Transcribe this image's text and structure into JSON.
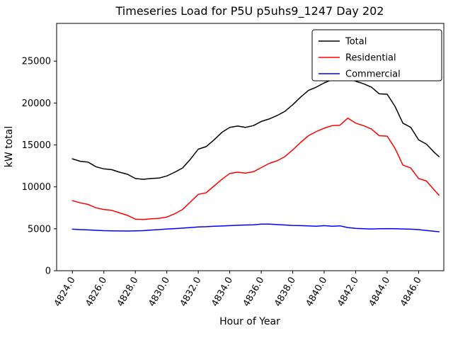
{
  "chart_data": {
    "type": "line",
    "title": "Timeseries Load for P5U p5uhs9_1247  Day 202",
    "xlabel": "Hour of Year",
    "ylabel": "kW total",
    "xlim": [
      4823.0,
      4847.6
    ],
    "ylim": [
      0,
      29500
    ],
    "grid": false,
    "legend_position": "upper right",
    "xticks": [
      4824,
      4826,
      4828,
      4830,
      4832,
      4834,
      4836,
      4838,
      4840,
      4842,
      4844,
      4846
    ],
    "xtick_labels": [
      "4824.0",
      "4826.0",
      "4828.0",
      "4830.0",
      "4832.0",
      "4834.0",
      "4836.0",
      "4838.0",
      "4840.0",
      "4842.0",
      "4844.0",
      "4846.0"
    ],
    "yticks": [
      0,
      5000,
      10000,
      15000,
      20000,
      25000
    ],
    "ytick_labels": [
      "0",
      "5000",
      "10000",
      "15000",
      "20000",
      "25000"
    ],
    "legend": [
      {
        "label": "Total",
        "color": "#000000"
      },
      {
        "label": "Residential",
        "color": "#ff0000"
      },
      {
        "label": "Commercial",
        "color": "#0000ff"
      }
    ],
    "x": [
      4824.0,
      4824.5,
      4825.0,
      4825.5,
      4826.0,
      4826.5,
      4827.0,
      4827.5,
      4828.0,
      4828.5,
      4829.0,
      4829.5,
      4830.0,
      4830.5,
      4831.0,
      4831.5,
      4832.0,
      4832.5,
      4833.0,
      4833.5,
      4834.0,
      4834.5,
      4835.0,
      4835.5,
      4836.0,
      4836.5,
      4837.0,
      4837.5,
      4838.0,
      4838.5,
      4839.0,
      4839.5,
      4840.0,
      4840.5,
      4841.0,
      4841.5,
      4842.0,
      4842.5,
      4843.0,
      4843.5,
      4844.0,
      4844.5,
      4845.0,
      4845.5,
      4846.0,
      4846.5,
      4847.0,
      4847.3
    ],
    "series": [
      {
        "name": "Total",
        "color": "#000000",
        "values": [
          13350,
          13050,
          12950,
          12400,
          12150,
          12050,
          11750,
          11500,
          11000,
          10900,
          11000,
          11050,
          11300,
          11750,
          12250,
          13300,
          14500,
          14800,
          15600,
          16500,
          17100,
          17250,
          17100,
          17300,
          17800,
          18100,
          18500,
          19000,
          19800,
          20700,
          21500,
          21900,
          22400,
          22800,
          22850,
          23250,
          22600,
          22300,
          21900,
          21100,
          21050,
          19600,
          17600,
          17100,
          15600,
          15100,
          14100,
          13600
        ]
      },
      {
        "name": "Residential",
        "color": "#ff0000",
        "values": [
          8350,
          8100,
          7900,
          7500,
          7300,
          7200,
          6900,
          6600,
          6150,
          6100,
          6200,
          6250,
          6400,
          6800,
          7300,
          8200,
          9100,
          9300,
          10100,
          10900,
          11600,
          11750,
          11650,
          11800,
          12300,
          12800,
          13100,
          13600,
          14400,
          15300,
          16100,
          16600,
          17000,
          17300,
          17350,
          18200,
          17600,
          17300,
          16900,
          16100,
          16050,
          14600,
          12600,
          12250,
          11000,
          10700,
          9600,
          9000
        ]
      },
      {
        "name": "Commercial",
        "color": "#0000ff",
        "values": [
          4950,
          4900,
          4870,
          4820,
          4780,
          4760,
          4740,
          4730,
          4750,
          4780,
          4850,
          4900,
          4980,
          5020,
          5080,
          5150,
          5220,
          5250,
          5300,
          5330,
          5380,
          5420,
          5450,
          5480,
          5550,
          5560,
          5500,
          5450,
          5400,
          5380,
          5350,
          5300,
          5380,
          5300,
          5350,
          5150,
          5050,
          5000,
          4980,
          5000,
          5020,
          5000,
          4980,
          4950,
          4900,
          4800,
          4700,
          4650
        ]
      }
    ]
  }
}
